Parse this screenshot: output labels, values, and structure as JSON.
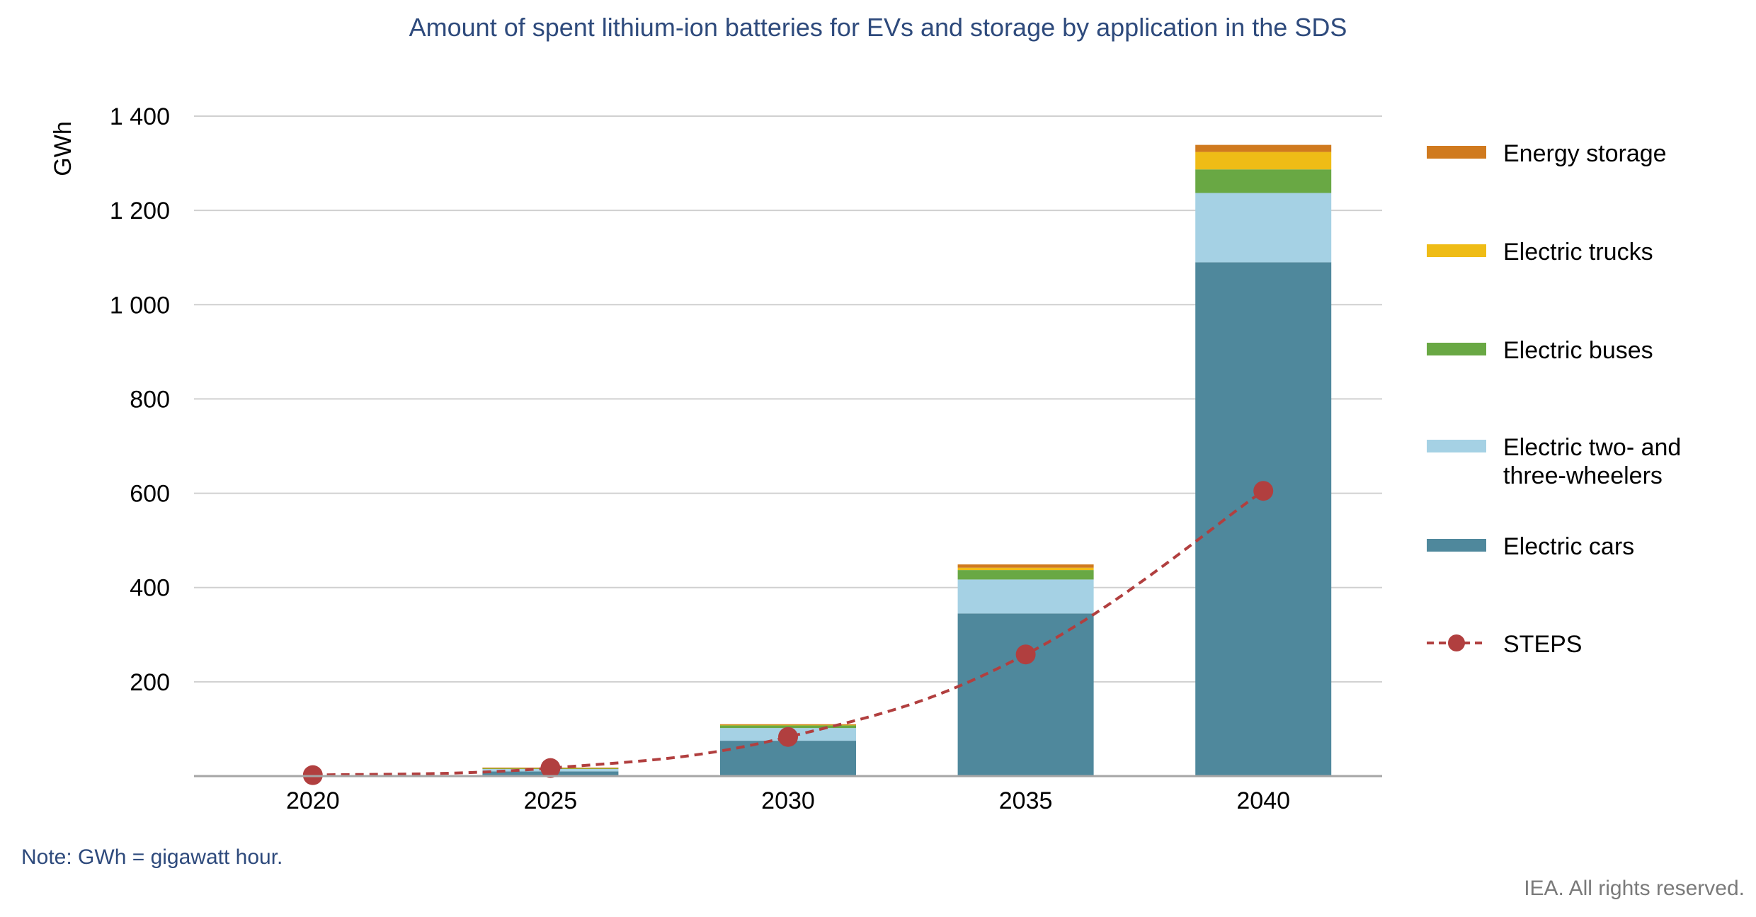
{
  "title": "Amount of spent lithium-ion batteries for EVs and storage by application in the SDS",
  "note": "Note: GWh = gigawatt hour.",
  "copyright": "IEA. All rights reserved.",
  "legend": [
    {
      "key": "energy_storage",
      "label": "Energy storage",
      "color": "#d07a1e",
      "kind": "bar"
    },
    {
      "key": "electric_trucks",
      "label": "Electric trucks",
      "color": "#efbc16",
      "kind": "bar"
    },
    {
      "key": "electric_buses",
      "label": "Electric buses",
      "color": "#69a844",
      "kind": "bar"
    },
    {
      "key": "two_three_wheelers",
      "label": "Electric two- and three-wheelers",
      "color": "#a5d1e4",
      "kind": "bar"
    },
    {
      "key": "electric_cars",
      "label": "Electric cars",
      "color": "#4f889c",
      "kind": "bar"
    },
    {
      "key": "steps",
      "label": "STEPS",
      "color": "#b13f3f",
      "kind": "line"
    }
  ],
  "chart_data": {
    "type": "bar",
    "stacked": true,
    "title": "Amount of spent lithium-ion batteries for EVs and storage by application in the SDS",
    "ylabel": "GWh",
    "xlabel": "",
    "ylim": [
      0,
      1400
    ],
    "yticks": [
      200,
      400,
      600,
      800,
      1000,
      1200,
      1400
    ],
    "ytick_labels": [
      "200",
      "400",
      "600",
      "800",
      "1 000",
      "1 200",
      "1 400"
    ],
    "categories": [
      "2020",
      "2025",
      "2030",
      "2035",
      "2040"
    ],
    "series": [
      {
        "name": "Electric cars",
        "color": "#4f889c",
        "values": [
          1,
          10,
          75,
          345,
          1090
        ]
      },
      {
        "name": "Electric two- and three-wheelers",
        "color": "#a5d1e4",
        "values": [
          0.5,
          5,
          27,
          72,
          147
        ]
      },
      {
        "name": "Electric buses",
        "color": "#69a844",
        "values": [
          0.2,
          2,
          6,
          20,
          50
        ]
      },
      {
        "name": "Electric trucks",
        "color": "#efbc16",
        "values": [
          0,
          0.5,
          1,
          5,
          37
        ]
      },
      {
        "name": "Energy storage",
        "color": "#d07a1e",
        "values": [
          0,
          0.5,
          1,
          7,
          15
        ]
      }
    ],
    "line_series": {
      "name": "STEPS",
      "color": "#b13f3f",
      "style": "dashed",
      "values": [
        2,
        17,
        83,
        258,
        605
      ]
    },
    "grid": true,
    "legend_position": "right"
  }
}
